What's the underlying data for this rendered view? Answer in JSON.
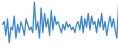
{
  "chart_data": {
    "type": "line",
    "x": [
      1,
      2,
      3,
      4,
      5,
      6,
      7,
      8,
      9,
      10,
      11,
      12,
      13,
      14,
      15,
      16,
      17,
      18,
      19,
      20,
      21,
      22,
      23,
      24,
      25,
      26,
      27,
      28,
      29,
      30,
      31,
      32,
      33,
      34,
      35,
      36,
      37,
      38,
      39,
      40,
      41,
      42,
      43,
      44,
      45,
      46,
      47,
      48,
      49,
      50,
      51,
      52,
      53,
      54,
      55,
      56,
      57,
      58,
      59,
      60,
      61,
      62,
      63,
      64,
      65,
      66,
      67,
      68,
      69,
      70
    ],
    "values": [
      55,
      60,
      35,
      65,
      20,
      50,
      45,
      70,
      30,
      55,
      40,
      60,
      50,
      35,
      65,
      55,
      45,
      50,
      40,
      95,
      45,
      60,
      30,
      85,
      40,
      75,
      50,
      65,
      35,
      80,
      45,
      70,
      55,
      60,
      50,
      40,
      55,
      45,
      60,
      50,
      55,
      45,
      50,
      40,
      55,
      60,
      45,
      70,
      40,
      65,
      50,
      75,
      45,
      70,
      55,
      60,
      40,
      65,
      50,
      75,
      45,
      60,
      35,
      55,
      70,
      50,
      65,
      45,
      30,
      90
    ],
    "color": "#3a87c8",
    "xlim": [
      1,
      70
    ],
    "ylim": [
      20,
      95
    ],
    "tick_labels": false,
    "grid": false
  }
}
